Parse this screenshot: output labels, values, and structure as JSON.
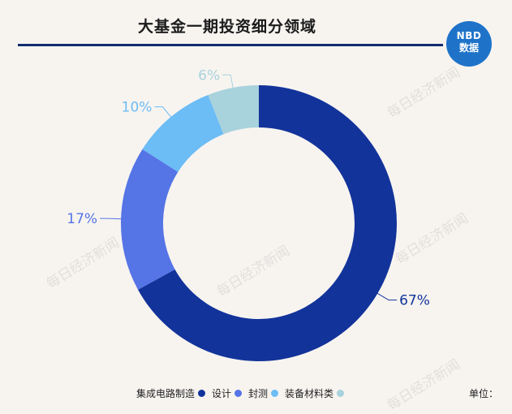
{
  "title": "大基金一期投资细分领域",
  "logo": {
    "line1": "NBD",
    "line2": "数据"
  },
  "watermark": "每日经济新闻",
  "unit_label": "单位：",
  "chart_data": {
    "type": "pie",
    "variant": "donut",
    "categories": [
      "集成电路制造",
      "设计",
      "封测",
      "装备材料类"
    ],
    "values": [
      67,
      17,
      10,
      6
    ],
    "data_labels": [
      "67%",
      "17%",
      "10%",
      "6%"
    ],
    "colors": [
      "#12339a",
      "#5574e6",
      "#6cbcf5",
      "#a8d2dc"
    ],
    "label_colors": [
      "#12339a",
      "#5574e6",
      "#6cbcf5",
      "#a8d2dc"
    ],
    "start_angle_deg": 0,
    "direction": "clockwise",
    "legend_position": "bottom"
  }
}
